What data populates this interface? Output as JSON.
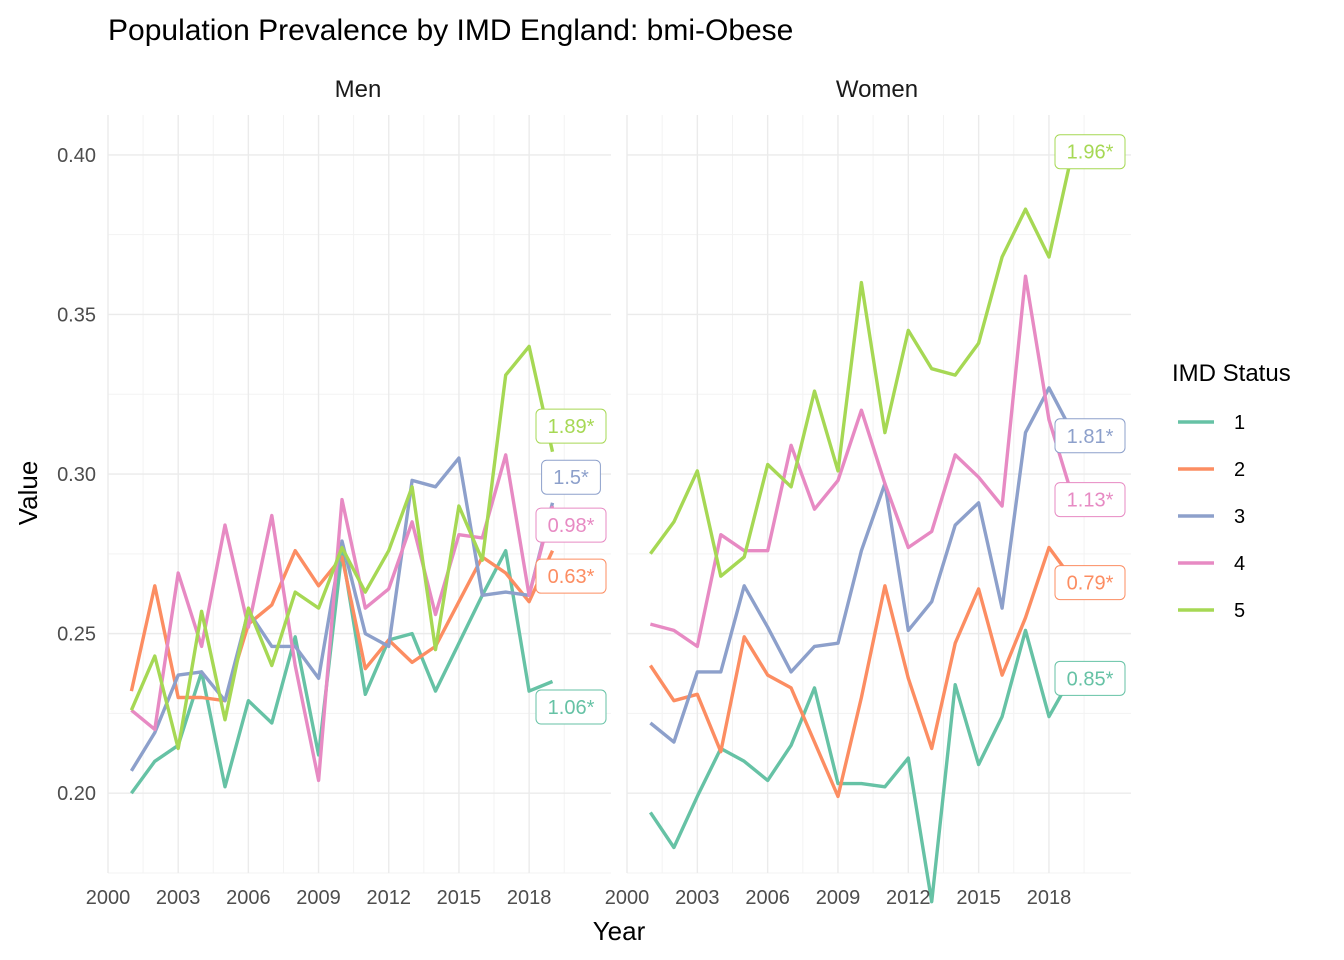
{
  "chart_data": {
    "type": "line",
    "title": "Population Prevalence by IMD England: bmi-Obese",
    "xlabel": "Year",
    "ylabel": "Value",
    "x_ticks": [
      "2000",
      "2003",
      "2006",
      "2009",
      "2012",
      "2015",
      "2018"
    ],
    "y_ticks": [
      "0.20",
      "0.25",
      "0.30",
      "0.35",
      "0.40"
    ],
    "legend": {
      "title": "IMD Status",
      "placement": "right",
      "entries": [
        "1",
        "2",
        "3",
        "4",
        "5"
      ]
    },
    "colors": {
      "1": "#66c2a5",
      "2": "#fc8d62",
      "3": "#8da0cb",
      "4": "#e78ac3",
      "5": "#a6d854"
    },
    "x": [
      2001,
      2002,
      2003,
      2004,
      2005,
      2006,
      2007,
      2008,
      2009,
      2010,
      2011,
      2012,
      2013,
      2014,
      2015,
      2016,
      2017,
      2018,
      2019
    ],
    "panels": [
      {
        "name": "Men",
        "series": [
          {
            "name": "1",
            "values": [
              0.2,
              0.21,
              0.215,
              0.238,
              0.202,
              0.229,
              0.222,
              0.249,
              0.212,
              0.276,
              0.231,
              0.248,
              0.25,
              0.232,
              0.247,
              0.262,
              0.276,
              0.232,
              0.235
            ]
          },
          {
            "name": "2",
            "values": [
              0.232,
              0.265,
              0.23,
              0.23,
              0.229,
              0.253,
              0.259,
              0.276,
              0.265,
              0.274,
              0.239,
              0.248,
              0.241,
              0.246,
              0.26,
              0.274,
              0.269,
              0.26,
              0.276
            ]
          },
          {
            "name": "3",
            "values": [
              0.207,
              0.219,
              0.237,
              0.238,
              0.229,
              0.257,
              0.246,
              0.246,
              0.236,
              0.279,
              0.25,
              0.246,
              0.298,
              0.296,
              0.305,
              0.262,
              0.263,
              0.262,
              0.291
            ]
          },
          {
            "name": "4",
            "values": [
              0.226,
              0.22,
              0.269,
              0.246,
              0.284,
              0.252,
              0.287,
              0.24,
              0.204,
              0.292,
              0.258,
              0.264,
              0.285,
              0.256,
              0.281,
              0.28,
              0.306,
              0.262,
              0.29
            ]
          },
          {
            "name": "5",
            "values": [
              0.226,
              0.243,
              0.214,
              0.257,
              0.223,
              0.258,
              0.24,
              0.263,
              0.258,
              0.277,
              0.263,
              0.276,
              0.296,
              0.245,
              0.29,
              0.273,
              0.331,
              0.34,
              0.307
            ]
          }
        ],
        "annotations": [
          {
            "series": "1",
            "text": "1.06*",
            "y": 0.227
          },
          {
            "series": "2",
            "text": "0.63*",
            "y": 0.268
          },
          {
            "series": "3",
            "text": "1.5*",
            "y": 0.299
          },
          {
            "series": "4",
            "text": "0.98*",
            "y": 0.284
          },
          {
            "series": "5",
            "text": "1.89*",
            "y": 0.315
          }
        ]
      },
      {
        "name": "Women",
        "series": [
          {
            "name": "1",
            "values": [
              0.194,
              0.183,
              0.199,
              0.214,
              0.21,
              0.204,
              0.215,
              0.233,
              0.203,
              0.203,
              0.202,
              0.211,
              0.166,
              0.234,
              0.209,
              0.224,
              0.251,
              0.224,
              0.237
            ]
          },
          {
            "name": "2",
            "values": [
              0.24,
              0.229,
              0.231,
              0.213,
              0.249,
              0.237,
              0.233,
              0.216,
              0.199,
              0.23,
              0.265,
              0.236,
              0.214,
              0.247,
              0.264,
              0.237,
              0.255,
              0.277,
              0.267
            ]
          },
          {
            "name": "3",
            "values": [
              0.222,
              0.216,
              0.238,
              0.238,
              0.265,
              0.252,
              0.238,
              0.246,
              0.247,
              0.276,
              0.297,
              0.251,
              0.26,
              0.284,
              0.291,
              0.258,
              0.313,
              0.327,
              0.313
            ]
          },
          {
            "name": "4",
            "values": [
              0.253,
              0.251,
              0.246,
              0.281,
              0.276,
              0.276,
              0.309,
              0.289,
              0.298,
              0.32,
              0.297,
              0.277,
              0.282,
              0.306,
              0.299,
              0.29,
              0.362,
              0.317,
              0.293
            ]
          },
          {
            "name": "5",
            "values": [
              0.275,
              0.285,
              0.301,
              0.268,
              0.274,
              0.303,
              0.296,
              0.326,
              0.301,
              0.36,
              0.313,
              0.345,
              0.333,
              0.331,
              0.341,
              0.368,
              0.383,
              0.368,
              0.401
            ]
          }
        ],
        "annotations": [
          {
            "series": "1",
            "text": "0.85*",
            "y": 0.236
          },
          {
            "series": "2",
            "text": "0.79*",
            "y": 0.266
          },
          {
            "series": "3",
            "text": "1.81*",
            "y": 0.312
          },
          {
            "series": "4",
            "text": "1.13*",
            "y": 0.292
          },
          {
            "series": "5",
            "text": "1.96*",
            "y": 0.401
          }
        ]
      }
    ]
  }
}
